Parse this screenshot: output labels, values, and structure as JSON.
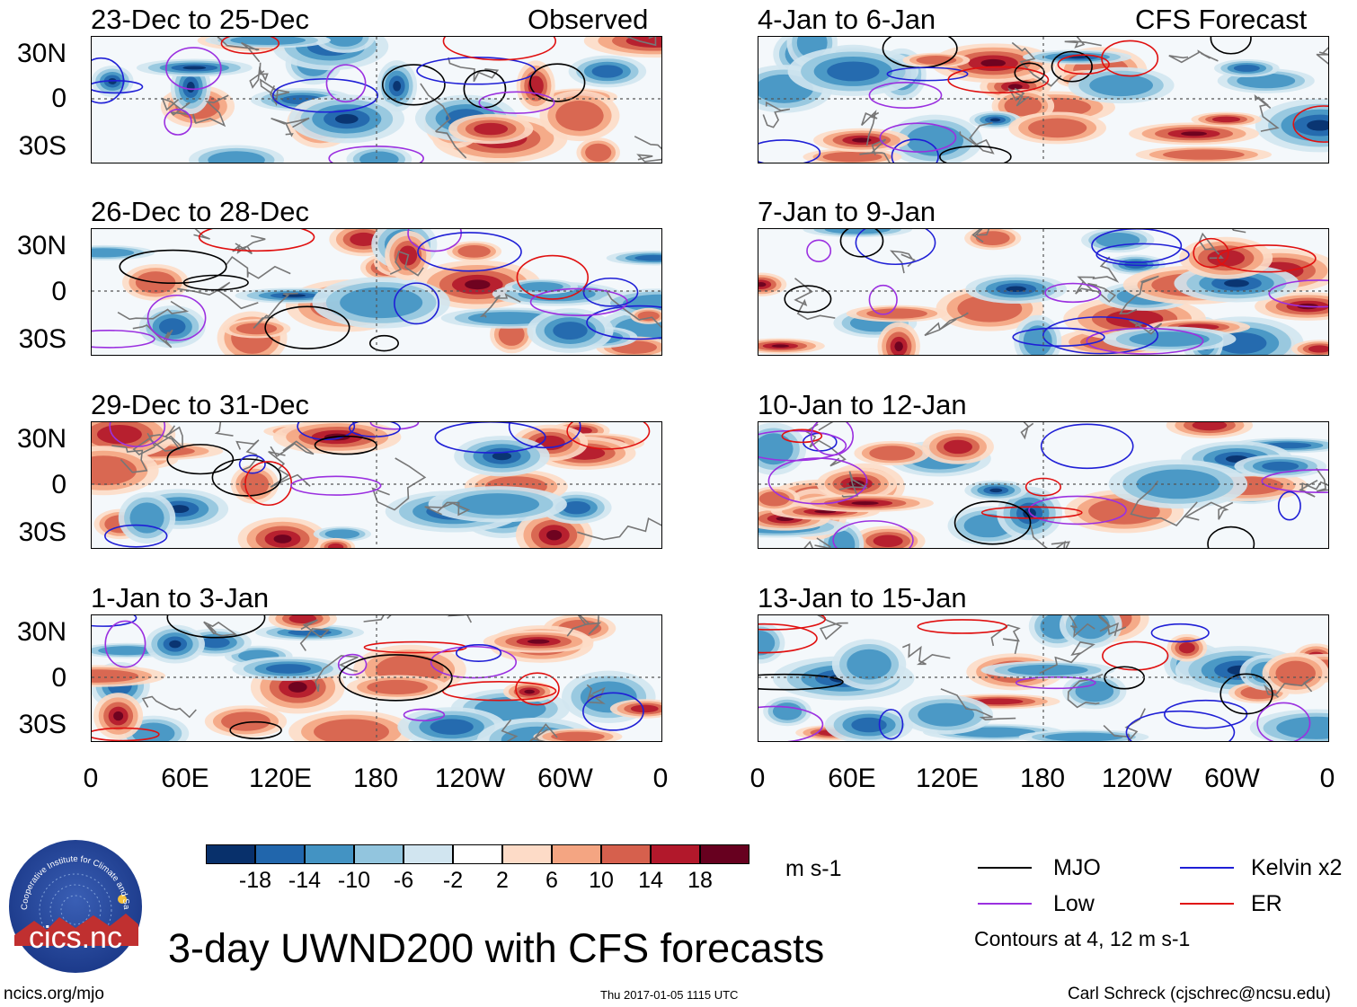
{
  "panels": {
    "observed": [
      {
        "title": "23-Dec to 25-Dec",
        "tag": "Observed"
      },
      {
        "title": "26-Dec to 28-Dec",
        "tag": ""
      },
      {
        "title": "29-Dec to 31-Dec",
        "tag": ""
      },
      {
        "title": "1-Jan to 3-Jan",
        "tag": ""
      }
    ],
    "forecast": [
      {
        "title": "4-Jan to 6-Jan",
        "tag": "CFS Forecast"
      },
      {
        "title": "7-Jan to 9-Jan",
        "tag": ""
      },
      {
        "title": "10-Jan to 12-Jan",
        "tag": ""
      },
      {
        "title": "13-Jan to 15-Jan",
        "tag": ""
      }
    ]
  },
  "y_ticks": [
    "30N",
    "0",
    "30S"
  ],
  "x_ticks": [
    "0",
    "60E",
    "120E",
    "180",
    "120W",
    "60W",
    "0"
  ],
  "colorbar": {
    "unit": "m s-1",
    "labels": [
      "-18",
      "-14",
      "-10",
      "-6",
      "-2",
      "2",
      "6",
      "10",
      "14",
      "18"
    ],
    "colors": [
      "#08306b",
      "#2166ac",
      "#4393c3",
      "#92c5de",
      "#d1e5f0",
      "#ffffff",
      "#fddbc7",
      "#f4a582",
      "#d6604d",
      "#b2182b",
      "#67001f"
    ]
  },
  "legend": {
    "items": [
      {
        "label": "MJO",
        "color": "#000000"
      },
      {
        "label": "Kelvin x2",
        "color": "#1f1fd6"
      },
      {
        "label": "Low",
        "color": "#9b30e0"
      },
      {
        "label": "ER",
        "color": "#e01010"
      }
    ],
    "note": "Contours at 4, 12 m s-1"
  },
  "main_title": "3-day UWND200 with CFS forecasts",
  "logo_text": "cics.nc",
  "logo_ring_text": "Cooperative Institute for Climate and Satellites",
  "footer": {
    "left": "ncics.org/mjo",
    "center": "Thu 2017-01-05 1115 UTC",
    "right": "Carl Schreck (cjschrec@ncsu.edu)"
  }
}
